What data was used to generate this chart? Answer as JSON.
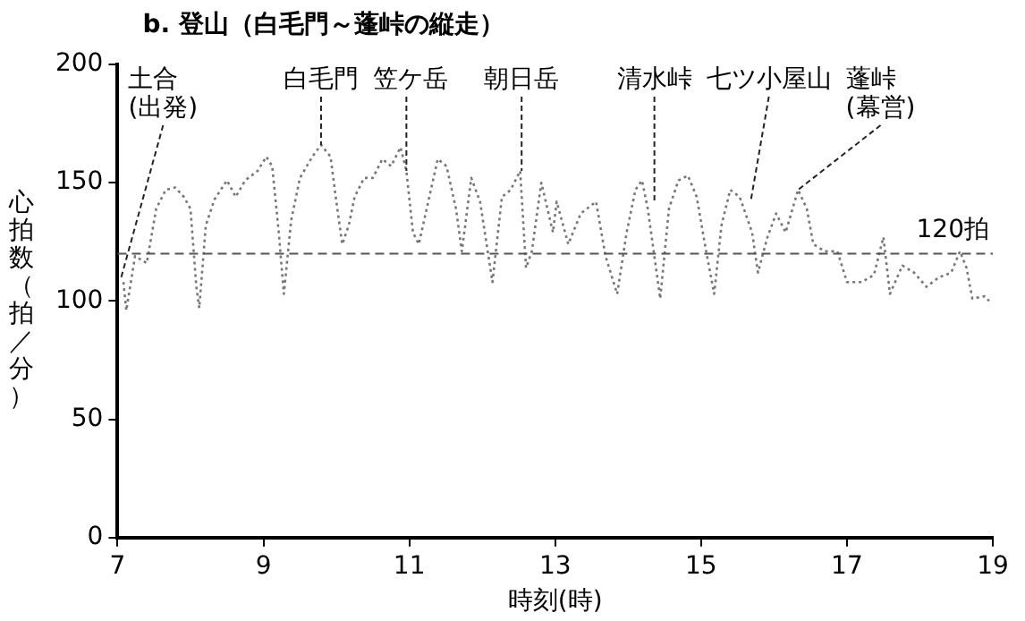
{
  "chart_data": {
    "type": "line",
    "title": "b. 登山（白毛門～蓬峠の縦走）",
    "xlabel": "時刻(時)",
    "ylabel": "心拍数（拍／分）",
    "x": [
      7.08,
      7.12,
      7.24,
      7.4,
      7.53,
      7.66,
      7.79,
      7.91,
      8.0,
      8.08,
      8.12,
      8.21,
      8.33,
      8.5,
      8.62,
      8.75,
      8.92,
      9.04,
      9.12,
      9.21,
      9.28,
      9.38,
      9.5,
      9.67,
      9.79,
      9.92,
      10.0,
      10.08,
      10.17,
      10.25,
      10.38,
      10.5,
      10.63,
      10.75,
      10.88,
      10.96,
      11.05,
      11.13,
      11.26,
      11.39,
      11.51,
      11.64,
      11.72,
      11.85,
      11.97,
      12.1,
      12.14,
      12.27,
      12.39,
      12.52,
      12.6,
      12.68,
      12.81,
      12.97,
      13.02,
      13.18,
      13.35,
      13.56,
      13.69,
      13.85,
      13.98,
      14.1,
      14.19,
      14.27,
      14.44,
      14.56,
      14.69,
      14.82,
      14.94,
      15.07,
      15.18,
      15.28,
      15.4,
      15.53,
      15.7,
      15.78,
      15.91,
      16.03,
      16.16,
      16.33,
      16.45,
      16.54,
      16.7,
      16.87,
      17.0,
      17.2,
      17.37,
      17.5,
      17.59,
      17.76,
      17.92,
      18.09,
      18.26,
      18.43,
      18.55,
      18.64,
      18.72,
      18.89,
      18.95
    ],
    "series": [
      {
        "color": "#777777",
        "values": [
          108,
          96,
          119,
          116,
          139,
          147,
          148,
          144,
          139,
          106,
          97,
          132,
          143,
          151,
          144,
          151,
          155,
          161,
          157,
          129,
          103,
          134,
          152,
          161,
          166,
          161,
          142,
          124,
          132,
          144,
          152,
          152,
          160,
          157,
          165,
          155,
          129,
          124,
          142,
          160,
          157,
          139,
          121,
          152,
          142,
          116,
          108,
          144,
          147,
          155,
          114,
          121,
          150,
          129,
          142,
          124,
          137,
          142,
          119,
          103,
          129,
          147,
          151,
          139,
          101,
          139,
          151,
          153,
          144,
          121,
          103,
          132,
          147,
          144,
          129,
          112,
          127,
          137,
          129,
          147,
          139,
          124,
          121,
          121,
          108,
          108,
          111,
          127,
          103,
          115,
          112,
          106,
          110,
          112,
          121,
          114,
          101,
          102,
          100
        ]
      }
    ],
    "xlim": [
      7,
      19
    ],
    "ylim": [
      0,
      200
    ],
    "xticks": [
      7,
      9,
      11,
      13,
      15,
      17,
      19
    ],
    "yticks": [
      0,
      50,
      100,
      150,
      200
    ],
    "marker": "none",
    "line_style": "dotted",
    "ref_lines": [
      {
        "axis": "y",
        "value": 120,
        "label": "120拍",
        "color": "#555555",
        "line_style": "dashed"
      }
    ],
    "annotations": [
      {
        "text": "土合\n(出発)",
        "x": 7.05,
        "y": 110
      },
      {
        "text": "白毛門",
        "x": 9.79,
        "y": 166
      },
      {
        "text": "笠ケ岳",
        "x": 10.96,
        "y": 155
      },
      {
        "text": "朝日岳",
        "x": 12.54,
        "y": 155
      },
      {
        "text": "清水峠",
        "x": 14.36,
        "y": 142
      },
      {
        "text": "七ツ小屋山",
        "x": 15.68,
        "y": 142
      },
      {
        "text": "蓬峠\n(幕営)",
        "x": 16.33,
        "y": 147
      }
    ]
  }
}
